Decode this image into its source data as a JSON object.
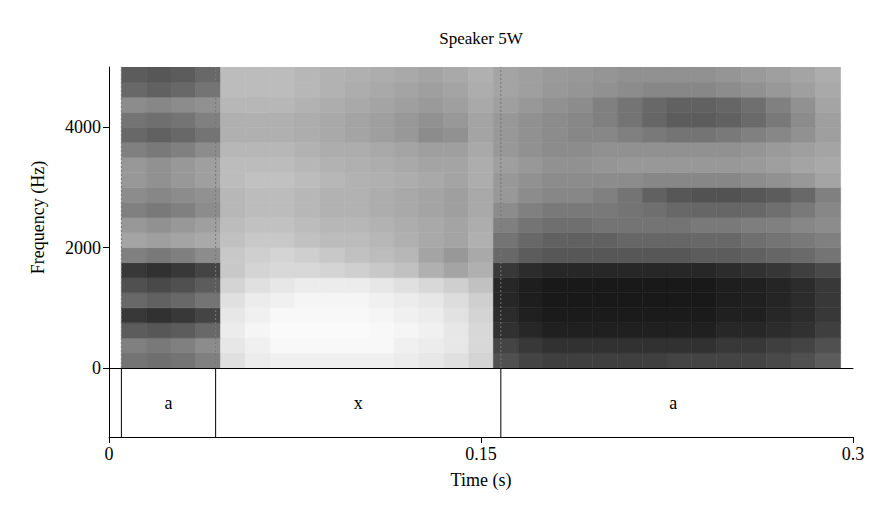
{
  "chart_data": {
    "type": "heatmap",
    "title": "Speaker 5W",
    "x_label": "Time (s)",
    "y_label": "Frequency (Hz)",
    "xlim": [
      0,
      0.3
    ],
    "xticks": [
      0,
      0.15,
      0.3
    ],
    "ylim": [
      0,
      5000
    ],
    "yticks": [
      0,
      2000,
      4000
    ],
    "x": [
      0.01,
      0.02,
      0.03,
      0.04,
      0.05,
      0.06,
      0.07,
      0.08,
      0.09,
      0.1,
      0.11,
      0.12,
      0.13,
      0.14,
      0.15,
      0.16,
      0.17,
      0.18,
      0.19,
      0.2,
      0.21,
      0.22,
      0.23,
      0.24,
      0.25,
      0.26,
      0.27,
      0.28,
      0.29
    ],
    "y": [
      125,
      375,
      625,
      875,
      1125,
      1375,
      1625,
      1875,
      2125,
      2375,
      2625,
      2875,
      3125,
      3375,
      3625,
      3875,
      4125,
      4375,
      4625,
      4875
    ],
    "cells": [
      [
        60,
        62,
        60,
        55,
        15,
        10,
        8,
        8,
        8,
        8,
        8,
        10,
        12,
        15,
        20,
        75,
        80,
        82,
        82,
        82,
        82,
        82,
        80,
        80,
        80,
        80,
        78,
        75,
        70
      ],
      [
        55,
        58,
        55,
        50,
        12,
        8,
        5,
        5,
        5,
        5,
        5,
        8,
        10,
        12,
        18,
        80,
        85,
        88,
        88,
        88,
        88,
        88,
        88,
        88,
        85,
        85,
        82,
        80,
        75
      ],
      [
        70,
        72,
        70,
        65,
        10,
        6,
        4,
        4,
        4,
        4,
        5,
        6,
        8,
        12,
        18,
        88,
        92,
        95,
        95,
        95,
        95,
        95,
        95,
        95,
        92,
        92,
        90,
        88,
        82
      ],
      [
        85,
        88,
        85,
        80,
        12,
        8,
        5,
        5,
        5,
        5,
        6,
        8,
        10,
        14,
        20,
        90,
        95,
        97,
        97,
        97,
        97,
        97,
        97,
        97,
        95,
        95,
        92,
        90,
        85
      ],
      [
        65,
        68,
        65,
        60,
        15,
        10,
        8,
        6,
        6,
        6,
        8,
        10,
        12,
        16,
        22,
        92,
        96,
        98,
        98,
        98,
        98,
        98,
        98,
        98,
        96,
        95,
        93,
        90,
        85
      ],
      [
        75,
        78,
        75,
        70,
        20,
        15,
        12,
        10,
        10,
        10,
        12,
        15,
        18,
        22,
        28,
        92,
        96,
        98,
        98,
        98,
        98,
        98,
        98,
        98,
        96,
        95,
        93,
        90,
        85
      ],
      [
        85,
        88,
        85,
        80,
        25,
        20,
        18,
        18,
        20,
        22,
        25,
        28,
        35,
        40,
        35,
        85,
        90,
        92,
        92,
        92,
        92,
        92,
        92,
        92,
        90,
        88,
        86,
        82,
        78
      ],
      [
        55,
        58,
        55,
        50,
        25,
        22,
        20,
        22,
        25,
        28,
        30,
        32,
        40,
        45,
        38,
        65,
        70,
        72,
        72,
        72,
        72,
        72,
        72,
        70,
        70,
        68,
        66,
        64,
        60
      ],
      [
        40,
        42,
        40,
        38,
        28,
        25,
        25,
        28,
        30,
        30,
        32,
        35,
        38,
        40,
        35,
        60,
        65,
        68,
        68,
        68,
        66,
        66,
        66,
        65,
        65,
        62,
        60,
        58,
        55
      ],
      [
        45,
        48,
        45,
        42,
        30,
        28,
        28,
        30,
        32,
        32,
        34,
        36,
        38,
        40,
        36,
        55,
        60,
        62,
        62,
        60,
        60,
        60,
        60,
        58,
        58,
        56,
        55,
        52,
        50
      ],
      [
        55,
        58,
        55,
        50,
        32,
        30,
        30,
        32,
        34,
        34,
        36,
        38,
        40,
        42,
        38,
        50,
        55,
        58,
        58,
        58,
        60,
        62,
        65,
        66,
        66,
        65,
        62,
        58,
        52
      ],
      [
        50,
        52,
        50,
        48,
        32,
        30,
        30,
        32,
        34,
        34,
        36,
        38,
        40,
        42,
        38,
        45,
        50,
        52,
        52,
        55,
        60,
        68,
        72,
        74,
        74,
        72,
        70,
        65,
        55
      ],
      [
        45,
        48,
        45,
        42,
        30,
        28,
        28,
        30,
        32,
        34,
        35,
        36,
        38,
        40,
        36,
        45,
        48,
        50,
        50,
        50,
        50,
        52,
        52,
        52,
        52,
        50,
        48,
        45,
        40
      ],
      [
        45,
        48,
        45,
        42,
        30,
        30,
        30,
        32,
        34,
        35,
        36,
        38,
        40,
        40,
        36,
        42,
        45,
        48,
        48,
        46,
        45,
        45,
        45,
        45,
        45,
        44,
        42,
        40,
        38
      ],
      [
        55,
        58,
        55,
        50,
        32,
        32,
        32,
        34,
        36,
        36,
        38,
        40,
        42,
        42,
        38,
        45,
        48,
        50,
        50,
        48,
        48,
        48,
        48,
        48,
        48,
        46,
        44,
        42,
        40
      ],
      [
        65,
        68,
        65,
        60,
        35,
        35,
        35,
        36,
        38,
        40,
        42,
        45,
        50,
        48,
        40,
        45,
        48,
        50,
        52,
        52,
        55,
        58,
        60,
        60,
        58,
        55,
        52,
        48,
        42
      ],
      [
        60,
        62,
        60,
        55,
        35,
        35,
        35,
        36,
        38,
        40,
        42,
        45,
        48,
        45,
        40,
        45,
        48,
        50,
        52,
        55,
        60,
        66,
        70,
        70,
        68,
        64,
        58,
        50,
        42
      ],
      [
        50,
        52,
        50,
        48,
        32,
        32,
        32,
        34,
        36,
        38,
        40,
        42,
        44,
        42,
        38,
        42,
        45,
        48,
        50,
        55,
        60,
        65,
        68,
        68,
        66,
        62,
        55,
        48,
        40
      ],
      [
        65,
        68,
        65,
        60,
        30,
        30,
        30,
        32,
        34,
        36,
        38,
        40,
        42,
        40,
        36,
        40,
        42,
        45,
        46,
        48,
        50,
        52,
        52,
        52,
        50,
        48,
        45,
        42,
        38
      ],
      [
        70,
        72,
        70,
        65,
        30,
        30,
        30,
        32,
        34,
        35,
        36,
        38,
        40,
        38,
        35,
        40,
        42,
        44,
        45,
        46,
        48,
        48,
        48,
        48,
        46,
        44,
        42,
        40,
        36
      ]
    ],
    "segments": [
      {
        "label": "a",
        "start": 0.005,
        "end": 0.043
      },
      {
        "label": "x",
        "start": 0.043,
        "end": 0.158
      },
      {
        "label": "a",
        "start": 0.158,
        "end": 0.297
      }
    ]
  }
}
